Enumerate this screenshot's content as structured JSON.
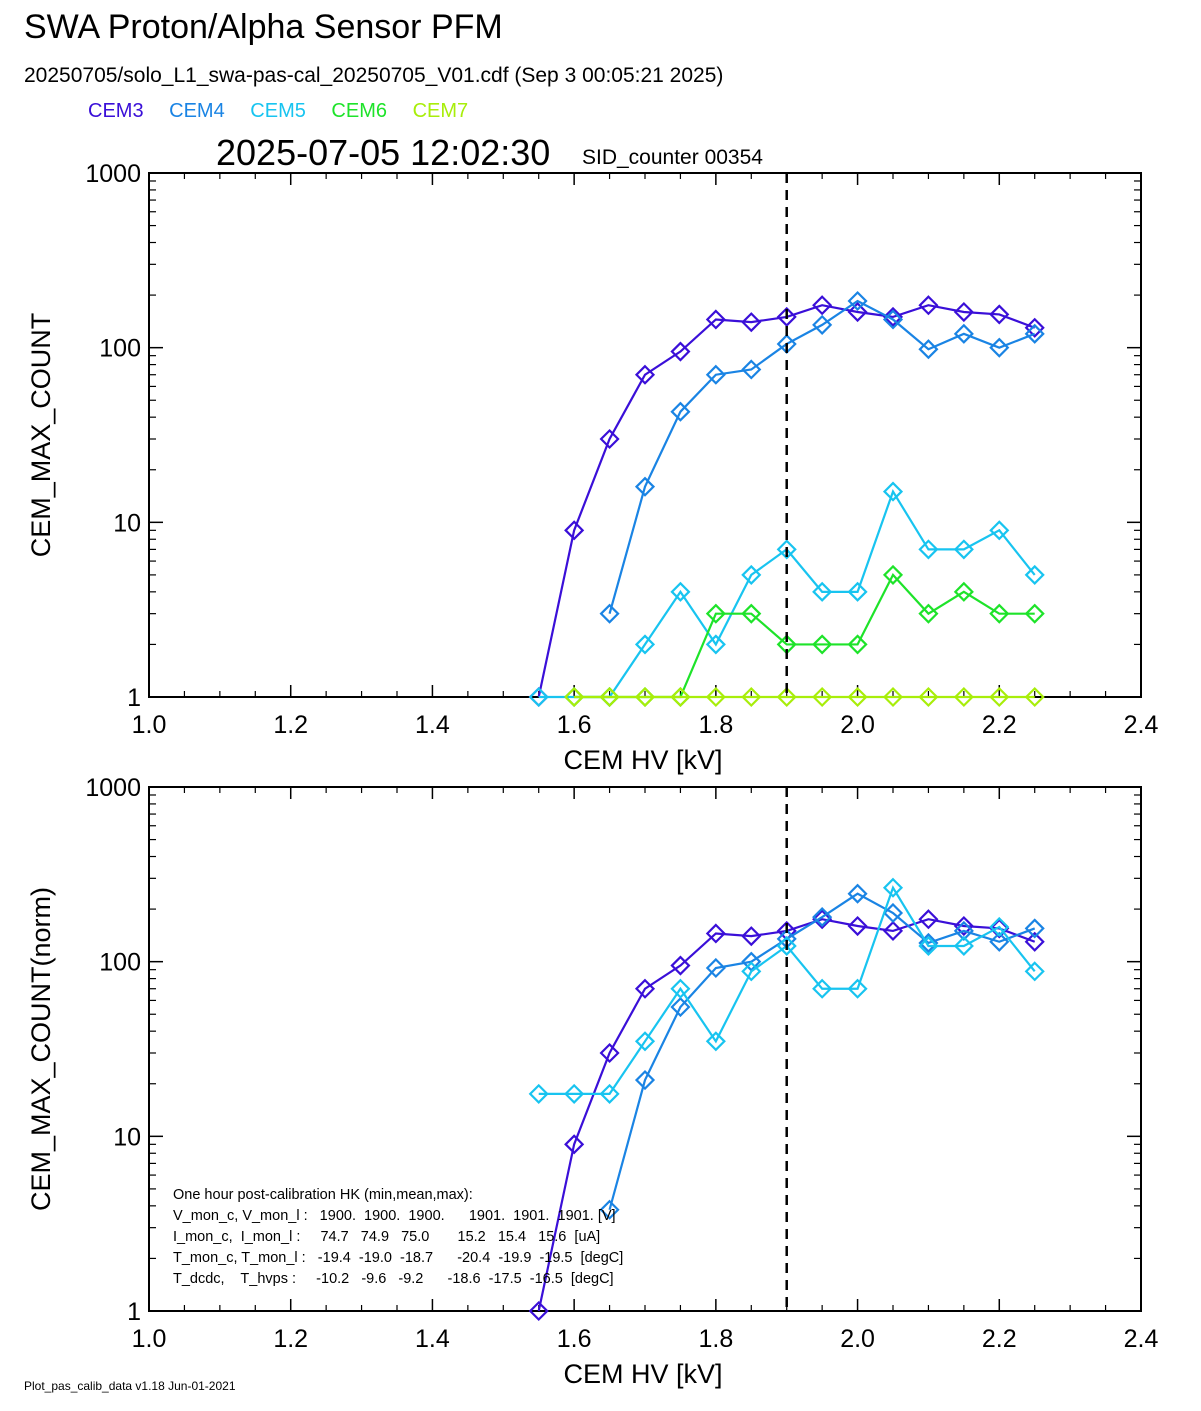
{
  "header": {
    "title": "SWA Proton/Alpha Sensor PFM",
    "subtitle": "20250705/solo_L1_swa-pas-cal_20250705_V01.cdf  (Sep  3 00:05:21 2025)",
    "timestamp": "2025-07-05 12:02:30",
    "sid_counter": "SID_counter 00354"
  },
  "legend": [
    {
      "name": "CEM3",
      "color": "#3a0fd8"
    },
    {
      "name": "CEM4",
      "color": "#1a84e4"
    },
    {
      "name": "CEM5",
      "color": "#18c4f0"
    },
    {
      "name": "CEM6",
      "color": "#1ee32a"
    },
    {
      "name": "CEM7",
      "color": "#a8ee0a"
    }
  ],
  "footer": "Plot_pas_calib_data v1.18 Jun-01-2021",
  "hk_note": {
    "lines": [
      "One hour post-calibration HK (min,mean,max):",
      "V_mon_c, V_mon_l :   1900.  1900.  1900.      1901.  1901.  1901. [V]",
      "I_mon_c,  I_mon_l :     74.7   74.9   75.0       15.2   15.4   15.6  [uA]",
      "T_mon_c, T_mon_l :   -19.4  -19.0  -18.7      -20.4  -19.9  -19.5  [degC]",
      "T_dcdc,    T_hvps :     -10.2   -9.6   -9.2      -18.6  -17.5  -16.5  [degC]"
    ]
  },
  "chart_data": [
    {
      "type": "line",
      "xlabel": "CEM HV [kV]",
      "ylabel": "CEM_MAX_COUNT",
      "xlim": [
        1.0,
        2.4
      ],
      "ylim": [
        1,
        1000
      ],
      "yscale": "log",
      "x_ticks": [
        "1.0",
        "1.2",
        "1.4",
        "1.6",
        "1.8",
        "2.0",
        "2.2",
        "2.4"
      ],
      "y_ticks": [
        "1",
        "10",
        "100",
        "1000"
      ],
      "vline": {
        "x": 1.9,
        "style": "dashed"
      },
      "series": [
        {
          "name": "CEM3",
          "x": [
            1.55,
            1.6,
            1.65,
            1.7,
            1.75,
            1.8,
            1.85,
            1.9,
            1.95,
            2.0,
            2.05,
            2.1,
            2.15,
            2.2,
            2.25
          ],
          "y": [
            1,
            9,
            30,
            70,
            95,
            145,
            140,
            150,
            175,
            160,
            150,
            175,
            160,
            155,
            130
          ]
        },
        {
          "name": "CEM4",
          "x": [
            1.65,
            1.7,
            1.75,
            1.8,
            1.85,
            1.9,
            1.95,
            2.0,
            2.05,
            2.1,
            2.15,
            2.2,
            2.25
          ],
          "y": [
            3,
            16,
            43,
            70,
            75,
            105,
            135,
            185,
            145,
            98,
            120,
            100,
            120
          ]
        },
        {
          "name": "CEM5",
          "x": [
            1.55,
            1.6,
            1.65,
            1.7,
            1.75,
            1.8,
            1.85,
            1.9,
            1.95,
            2.0,
            2.05,
            2.1,
            2.15,
            2.2,
            2.25
          ],
          "y": [
            1,
            1,
            1,
            2,
            4,
            2,
            5,
            7,
            4,
            4,
            15,
            7,
            7,
            9,
            5
          ]
        },
        {
          "name": "CEM6",
          "x": [
            1.6,
            1.65,
            1.7,
            1.75,
            1.8,
            1.85,
            1.9,
            1.95,
            2.0,
            2.05,
            2.1,
            2.15,
            2.2,
            2.25
          ],
          "y": [
            1,
            1,
            1,
            1,
            3,
            3,
            2,
            2,
            2,
            5,
            3,
            4,
            3,
            3
          ]
        },
        {
          "name": "CEM7",
          "x": [
            1.6,
            1.65,
            1.7,
            1.75,
            1.8,
            1.85,
            1.9,
            1.95,
            2.0,
            2.05,
            2.1,
            2.15,
            2.2,
            2.25
          ],
          "y": [
            1,
            1,
            1,
            1,
            1,
            1,
            1,
            1,
            1,
            1,
            1,
            1,
            1,
            1
          ]
        }
      ]
    },
    {
      "type": "line",
      "xlabel": "CEM HV [kV]",
      "ylabel": "CEM_MAX_COUNT(norm)",
      "xlim": [
        1.0,
        2.4
      ],
      "ylim": [
        1,
        1000
      ],
      "yscale": "log",
      "x_ticks": [
        "1.0",
        "1.2",
        "1.4",
        "1.6",
        "1.8",
        "2.0",
        "2.2",
        "2.4"
      ],
      "y_ticks": [
        "1",
        "10",
        "100",
        "1000"
      ],
      "vline": {
        "x": 1.9,
        "style": "dashed"
      },
      "series": [
        {
          "name": "CEM3",
          "x": [
            1.55,
            1.6,
            1.65,
            1.7,
            1.75,
            1.8,
            1.85,
            1.9,
            1.95,
            2.0,
            2.05,
            2.1,
            2.15,
            2.2,
            2.25
          ],
          "y": [
            1,
            9,
            30,
            70,
            95,
            145,
            140,
            150,
            175,
            160,
            150,
            175,
            160,
            155,
            130
          ]
        },
        {
          "name": "CEM4",
          "x": [
            1.65,
            1.7,
            1.75,
            1.8,
            1.85,
            1.9,
            1.95,
            2.0,
            2.05,
            2.1,
            2.15,
            2.2,
            2.25
          ],
          "y": [
            3.8,
            21,
            55,
            92,
            100,
            135,
            180,
            245,
            190,
            128,
            150,
            130,
            155
          ]
        },
        {
          "name": "CEM5",
          "x": [
            1.55,
            1.6,
            1.65,
            1.7,
            1.75,
            1.8,
            1.85,
            1.9,
            1.95,
            2.0,
            2.05,
            2.1,
            2.15,
            2.2,
            2.25
          ],
          "y": [
            17.5,
            17.5,
            17.5,
            35,
            70,
            35,
            88,
            123,
            70,
            70,
            265,
            123,
            123,
            158,
            88
          ]
        }
      ]
    }
  ]
}
